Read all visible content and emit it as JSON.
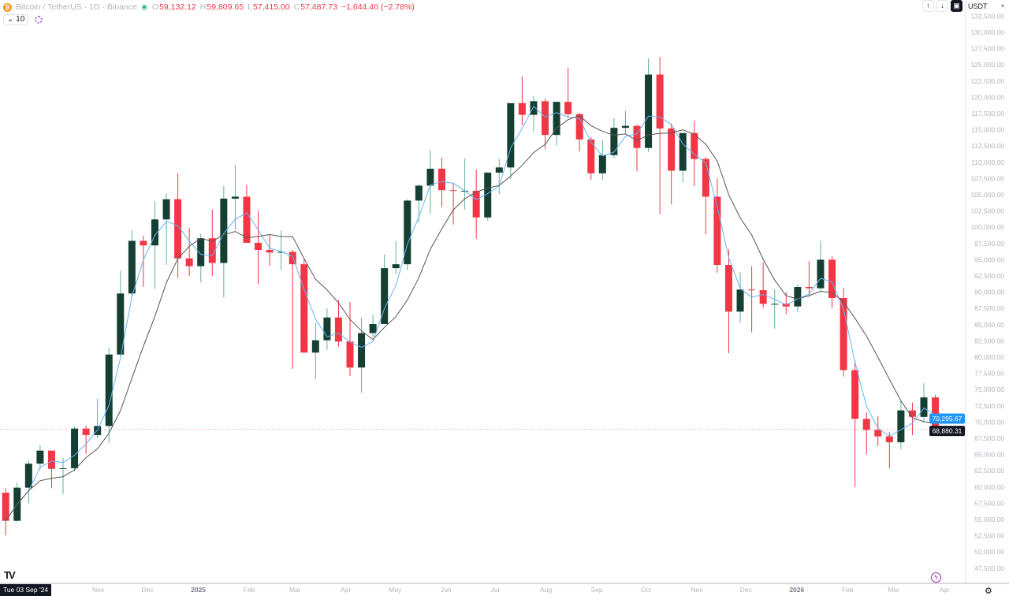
{
  "header": {
    "symbol": "Bitcoin / TetherUS · 1D · Binance",
    "o_label": "O",
    "o": "59,132.12",
    "h_label": "H",
    "h": "59,809.65",
    "l_label": "L",
    "l": "57,415.00",
    "c_label": "C",
    "c": "57,487.73",
    "change": "−1,644.40 (−2.78%)",
    "indicator_toggle": "10"
  },
  "toolbar": {
    "up_icon": "↑",
    "down_icon": "↓",
    "currency": "USDT"
  },
  "crosshair_date": "Tue 03 Sep '24",
  "price_labels": {
    "ma": "70,295.67",
    "last": "68,880.31"
  },
  "colors": {
    "up_body": "#163f33",
    "up_wick": "#5fb3a1",
    "down": "#f23645",
    "ma_fast": "#64b5f6",
    "ma_slow": "#555555",
    "last_line": "#f23645",
    "ma_label": "#2196f3"
  },
  "chart_data": {
    "type": "candlestick",
    "timeframe_shown": "1D",
    "ylim": [
      46500,
      133500
    ],
    "grid": false,
    "y_ticks": [
      "132,500.00",
      "130,000.00",
      "127,500.00",
      "125,000.00",
      "122,500.00",
      "120,000.00",
      "117,500.00",
      "115,000.00",
      "112,500.00",
      "110,000.00",
      "107,500.00",
      "105,000.00",
      "102,500.00",
      "100,000.00",
      "97,500.00",
      "95,000.00",
      "92,500.00",
      "90,000.00",
      "87,500.00",
      "85,000.00",
      "82,500.00",
      "80,000.00",
      "77,500.00",
      "75,000.00",
      "72,500.00",
      "70,000.00",
      "67,500.00",
      "65,000.00",
      "62,500.00",
      "60,000.00",
      "57,500.00",
      "55,000.00",
      "52,500.00",
      "50,000.00",
      "47,500.00"
    ],
    "x_ticks": [
      {
        "label": "Nov",
        "date": "2024-11-01"
      },
      {
        "label": "Dec",
        "date": "2024-12-01"
      },
      {
        "label": "2025",
        "date": "2025-01-01"
      },
      {
        "label": "Feb",
        "date": "2025-02-01"
      },
      {
        "label": "Mar",
        "date": "2025-03-01"
      },
      {
        "label": "Apr",
        "date": "2025-04-01"
      },
      {
        "label": "May",
        "date": "2025-05-01"
      },
      {
        "label": "Jun",
        "date": "2025-06-01"
      },
      {
        "label": "Jul",
        "date": "2025-07-01"
      },
      {
        "label": "Aug",
        "date": "2025-08-01"
      },
      {
        "label": "Sep",
        "date": "2025-09-01"
      },
      {
        "label": "Oct",
        "date": "2025-10-01"
      },
      {
        "label": "Nov",
        "date": "2025-11-01"
      },
      {
        "label": "Dec",
        "date": "2025-12-01"
      },
      {
        "label": "2026",
        "date": "2026-01-01"
      },
      {
        "label": "Feb",
        "date": "2026-02-01"
      },
      {
        "label": "Mar",
        "date": "2026-03-01"
      },
      {
        "label": "Apr",
        "date": "2026-04-01"
      }
    ],
    "ohlc_columns": [
      "date",
      "open",
      "high",
      "low",
      "close"
    ],
    "candles": [
      [
        "2024-09-02",
        59132,
        59810,
        52550,
        54800
      ],
      [
        "2024-09-09",
        54800,
        60700,
        54600,
        59900
      ],
      [
        "2024-09-16",
        59900,
        64100,
        57500,
        63600
      ],
      [
        "2024-09-23",
        63600,
        66500,
        62700,
        65600
      ],
      [
        "2024-09-30",
        65600,
        65600,
        59800,
        62800
      ],
      [
        "2024-10-07",
        62800,
        64500,
        58900,
        62900
      ],
      [
        "2024-10-14",
        62900,
        69400,
        62400,
        69000
      ],
      [
        "2024-10-21",
        69000,
        69500,
        65100,
        68000
      ],
      [
        "2024-10-28",
        68000,
        73600,
        67500,
        69400
      ],
      [
        "2024-11-04",
        69400,
        81500,
        66800,
        80400
      ],
      [
        "2024-11-11",
        80400,
        93300,
        80200,
        89800
      ],
      [
        "2024-11-18",
        89800,
        99600,
        89400,
        97900
      ],
      [
        "2024-11-25",
        97900,
        98700,
        90800,
        97200
      ],
      [
        "2024-12-02",
        97200,
        104000,
        90500,
        101200
      ],
      [
        "2024-12-09",
        101200,
        105200,
        94200,
        104300
      ],
      [
        "2024-12-16",
        104300,
        108300,
        92200,
        95200
      ],
      [
        "2024-12-23",
        95200,
        99900,
        92500,
        94000
      ],
      [
        "2024-12-30",
        94000,
        99000,
        91500,
        98300
      ],
      [
        "2025-01-06",
        98300,
        102700,
        92500,
        94500
      ],
      [
        "2025-01-13",
        94500,
        106400,
        89200,
        104400
      ],
      [
        "2025-01-20",
        104400,
        109600,
        99500,
        104700
      ],
      [
        "2025-01-27",
        104700,
        106500,
        97800,
        97600
      ],
      [
        "2025-02-03",
        97600,
        102500,
        91200,
        96500
      ],
      [
        "2025-02-10",
        96500,
        98800,
        94100,
        96100
      ],
      [
        "2025-02-17",
        96100,
        99500,
        93400,
        96200
      ],
      [
        "2025-02-24",
        96200,
        96500,
        78200,
        94300
      ],
      [
        "2025-03-03",
        94300,
        95000,
        81500,
        80700
      ],
      [
        "2025-03-10",
        80700,
        85300,
        76600,
        82600
      ],
      [
        "2025-03-17",
        82600,
        87500,
        81100,
        86100
      ],
      [
        "2025-03-24",
        86100,
        88800,
        81600,
        82400
      ],
      [
        "2025-03-31",
        82400,
        88500,
        77100,
        78400
      ],
      [
        "2025-04-07",
        78400,
        86100,
        74500,
        83700
      ],
      [
        "2025-04-14",
        83700,
        86500,
        83100,
        85100
      ],
      [
        "2025-04-21",
        85100,
        95800,
        85100,
        93700
      ],
      [
        "2025-04-28",
        93700,
        97900,
        92800,
        94300
      ],
      [
        "2025-05-05",
        94300,
        104300,
        93400,
        104100
      ],
      [
        "2025-05-12",
        104100,
        106600,
        100700,
        106400
      ],
      [
        "2025-05-19",
        106400,
        111900,
        102000,
        109000
      ],
      [
        "2025-05-26",
        109000,
        110700,
        103100,
        105700
      ],
      [
        "2025-06-02",
        105700,
        106800,
        100400,
        105600
      ],
      [
        "2025-06-09",
        105600,
        110600,
        102700,
        105600
      ],
      [
        "2025-06-16",
        105600,
        108900,
        98200,
        101500
      ],
      [
        "2025-06-23",
        101500,
        108500,
        101000,
        108400
      ],
      [
        "2025-06-30",
        108400,
        110500,
        105100,
        109200
      ],
      [
        "2025-07-07",
        109200,
        119000,
        107400,
        119100
      ],
      [
        "2025-07-14",
        119100,
        123200,
        115700,
        117300
      ],
      [
        "2025-07-21",
        117300,
        120200,
        114700,
        119400
      ],
      [
        "2025-07-28",
        119400,
        119800,
        112000,
        114200
      ],
      [
        "2025-08-04",
        114200,
        119300,
        112600,
        119300
      ],
      [
        "2025-08-11",
        119300,
        124500,
        116800,
        117400
      ],
      [
        "2025-08-18",
        117400,
        117600,
        111700,
        113500
      ],
      [
        "2025-08-25",
        113500,
        113900,
        107300,
        108300
      ],
      [
        "2025-09-01",
        108300,
        113400,
        107300,
        111100
      ],
      [
        "2025-09-08",
        111100,
        116800,
        110600,
        115300
      ],
      [
        "2025-09-15",
        115300,
        117900,
        114400,
        115600
      ],
      [
        "2025-09-22",
        115600,
        115800,
        108600,
        112200
      ],
      [
        "2025-09-29",
        112200,
        126000,
        111600,
        123500
      ],
      [
        "2025-10-06",
        123500,
        126200,
        102000,
        115200
      ],
      [
        "2025-10-13",
        115200,
        116000,
        103500,
        108700
      ],
      [
        "2025-10-20",
        108700,
        114000,
        106900,
        114500
      ],
      [
        "2025-10-27",
        114500,
        116400,
        106300,
        110500
      ],
      [
        "2025-11-03",
        110500,
        110800,
        98900,
        104700
      ],
      [
        "2025-11-10",
        104700,
        107500,
        93000,
        94200
      ],
      [
        "2025-11-17",
        94200,
        96600,
        80600,
        87000
      ],
      [
        "2025-11-24",
        87000,
        93100,
        85300,
        90400
      ],
      [
        "2025-12-01",
        90400,
        94000,
        83800,
        90300
      ],
      [
        "2025-12-08",
        90300,
        94600,
        87600,
        88200
      ],
      [
        "2025-12-15",
        88200,
        90400,
        84400,
        88200
      ],
      [
        "2025-12-22",
        88200,
        90000,
        86600,
        87800
      ],
      [
        "2025-12-29",
        87800,
        91200,
        86900,
        90800
      ],
      [
        "2026-01-05",
        90800,
        94800,
        89300,
        90600
      ],
      [
        "2026-01-12",
        90600,
        97900,
        90200,
        95000
      ],
      [
        "2026-01-19",
        95000,
        95500,
        87500,
        89100
      ],
      [
        "2026-01-26",
        89100,
        90600,
        77000,
        78000
      ],
      [
        "2026-02-02",
        78000,
        79500,
        60000,
        70500
      ],
      [
        "2026-02-09",
        70500,
        71500,
        65000,
        68800
      ],
      [
        "2026-02-16",
        68800,
        70900,
        66300,
        67800
      ],
      [
        "2026-02-23",
        67800,
        68500,
        62900,
        66900
      ],
      [
        "2026-03-02",
        66900,
        73300,
        65800,
        71800
      ],
      [
        "2026-03-09",
        71800,
        73000,
        68000,
        70800
      ],
      [
        "2026-03-16",
        70800,
        76000,
        70000,
        73800
      ],
      [
        "2026-03-23",
        73800,
        74200,
        68000,
        68880
      ]
    ]
  }
}
